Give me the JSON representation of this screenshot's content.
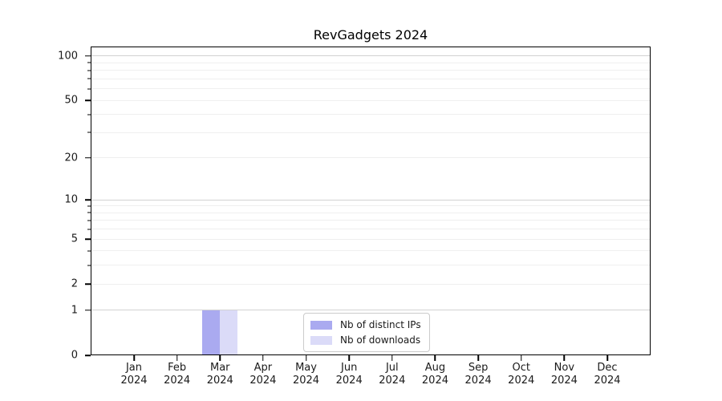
{
  "chart_data": {
    "type": "bar",
    "title": "RevGadgets 2024",
    "year": "2024",
    "months": [
      "Jan",
      "Feb",
      "Mar",
      "Apr",
      "May",
      "Jun",
      "Jul",
      "Aug",
      "Sep",
      "Oct",
      "Nov",
      "Dec"
    ],
    "series": [
      {
        "name": "Nb of distinct IPs",
        "color": "#aaaaf0",
        "values": [
          0,
          0,
          1,
          0,
          0,
          0,
          0,
          0,
          0,
          0,
          0,
          0
        ]
      },
      {
        "name": "Nb of downloads",
        "color": "#dbdbf8",
        "values": [
          0,
          0,
          1,
          0,
          0,
          0,
          0,
          0,
          0,
          0,
          0,
          0
        ]
      }
    ],
    "xlabel": "",
    "ylabel": "",
    "yscale": "log1p",
    "ylim": [
      0,
      116
    ],
    "yticks": [
      0,
      1,
      2,
      5,
      10,
      20,
      50,
      100
    ],
    "major_grid_values": [
      1,
      10,
      100
    ],
    "minor_grid_values": [
      2,
      3,
      4,
      5,
      6,
      7,
      8,
      9,
      20,
      30,
      40,
      50,
      60,
      70,
      80,
      90
    ],
    "grid": "horizontal",
    "legend_position": "lower center",
    "colors": {
      "major_grid": "#d2d2d2",
      "minor_grid": "#efefef",
      "axis": "#000000",
      "tick_text": "#1a1a1a"
    }
  }
}
